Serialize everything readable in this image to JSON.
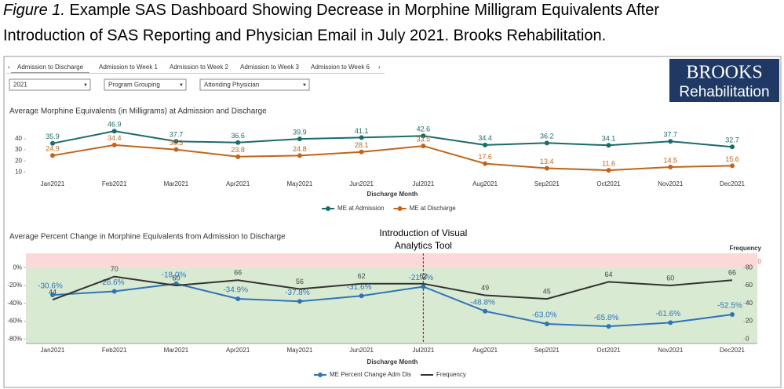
{
  "caption": {
    "label": "Figure 1.",
    "lines": [
      "Example SAS Dashboard Showing Decrease in Morphine Milligram Equivalents After",
      "Introduction of SAS Reporting and Physician Email in July 2021. Brooks Rehabilitation."
    ]
  },
  "tabs": [
    "Admission to Discharge",
    "Admission to Week 1",
    "Admission to Week 2",
    "Admission to Week 3",
    "Admission to Week 6"
  ],
  "filters": [
    "2021",
    "Program Grouping",
    "Attending Physician"
  ],
  "logo": {
    "name": "BROOKS",
    "subtitle": "Rehabilitation"
  },
  "chart_data": [
    {
      "type": "line",
      "title": "Average Morphine Equivalents (in Milligrams) at Admission and Discharge",
      "x_label": "Discharge Month",
      "categories": [
        "Jan2021",
        "Feb2021",
        "Mar2021",
        "Apr2021",
        "May2021",
        "Jun2021",
        "Jul2021",
        "Aug2021",
        "Sep2021",
        "Oct2021",
        "Nov2021",
        "Dec2021"
      ],
      "series": [
        {
          "name": "ME at Admission",
          "color": "#1b6b6b",
          "values": [
            35.9,
            46.9,
            37.7,
            36.6,
            39.9,
            41.1,
            42.6,
            34.4,
            36.2,
            34.1,
            37.7,
            32.7
          ]
        },
        {
          "name": "ME at Discharge",
          "color": "#c0651a",
          "values": [
            24.9,
            34.4,
            30.3,
            23.8,
            24.8,
            28.1,
            33.5,
            17.6,
            13.4,
            11.6,
            14.5,
            15.6
          ]
        }
      ],
      "ylim": [
        6,
        52
      ],
      "yticks": [
        10,
        20,
        30,
        40
      ]
    },
    {
      "type": "line",
      "title": "Average Percent Change in Morphine Equivalents from Admission to Discharge",
      "x_label": "Discharge Month",
      "y2_label": "Frequency",
      "note": "0",
      "categories": [
        "Jan2021",
        "Feb2021",
        "Mar2021",
        "Apr2021",
        "May2021",
        "Jun2021",
        "Jul2021",
        "Aug2021",
        "Sep2021",
        "Oct2021",
        "Nov2021",
        "Dec2021"
      ],
      "series": [
        {
          "name": "ME Percent Change Adm Dis",
          "color": "#2e75b6",
          "values": [
            -30.6,
            -26.6,
            -18.0,
            -34.9,
            -37.8,
            -31.6,
            -21.3,
            -48.8,
            -63.0,
            -65.8,
            -61.6,
            -52.5
          ],
          "value_labels": [
            "-30.6%",
            "-26.6%",
            "-18.0%",
            "-34.9%",
            "-37.8%",
            "-31.6%",
            "-21.3%",
            "-48.8%",
            "-63.0%",
            "-65.8%",
            "-61.6%",
            "-52.5%"
          ]
        },
        {
          "name": "Frequency",
          "color": "#333333",
          "axis": "y2",
          "values": [
            44,
            70,
            60,
            66,
            56,
            62,
            62,
            49,
            45,
            64,
            60,
            66
          ]
        }
      ],
      "ylim": [
        -85,
        16
      ],
      "yticks": [
        {
          "value": 0,
          "label": "0%"
        },
        {
          "value": -20,
          "label": "-20%"
        },
        {
          "value": -40,
          "label": "-40%"
        },
        {
          "value": -60,
          "label": "-60%"
        },
        {
          "value": -80,
          "label": "-80%"
        }
      ],
      "y2lim": [
        -5,
        96
      ],
      "y2ticks": [
        0,
        20,
        40,
        60,
        80
      ],
      "background": {
        "above_zero": "#fbd9d9",
        "below_zero": "#d9ead3"
      },
      "annotation": {
        "text": [
          "Introduction of Visual",
          "Analytics Tool"
        ],
        "x": "Jul2021",
        "color": "#c00000"
      }
    }
  ]
}
